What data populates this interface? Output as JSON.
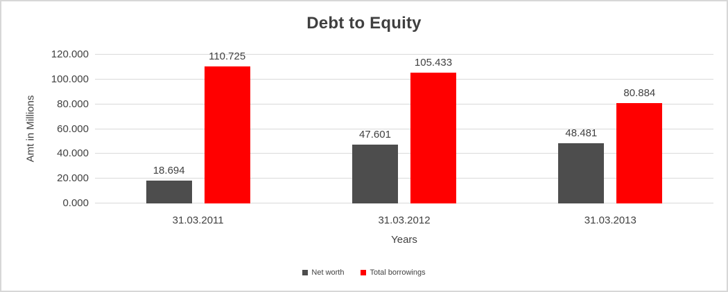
{
  "frame": {
    "background_color": "#ffffff",
    "border_color": "#d7d7d7",
    "gridline_color": "#d9d9d9",
    "text_color": "#404040"
  },
  "chart_data": {
    "type": "bar",
    "title": "Debt to Equity",
    "xlabel": "Years",
    "ylabel": "Amt in Millions",
    "categories": [
      "31.03.2011",
      "31.03.2012",
      "31.03.2013"
    ],
    "series": [
      {
        "name": "Net worth",
        "color": "#4d4d4d",
        "values": [
          18.694,
          47.601,
          48.481
        ]
      },
      {
        "name": "Total borrowings",
        "color": "#ff0000",
        "values": [
          110.725,
          105.433,
          80.884
        ]
      }
    ],
    "data_labels": [
      [
        "18.694",
        "47.601",
        "48.481"
      ],
      [
        "110.725",
        "105.433",
        "80.884"
      ]
    ],
    "y_axis": {
      "min": 0,
      "max": 120,
      "step": 20,
      "tick_labels": [
        "0.000",
        "20.000",
        "40.000",
        "60.000",
        "80.000",
        "100.000",
        "120.000"
      ]
    },
    "grid": true,
    "legend_position": "bottom"
  }
}
